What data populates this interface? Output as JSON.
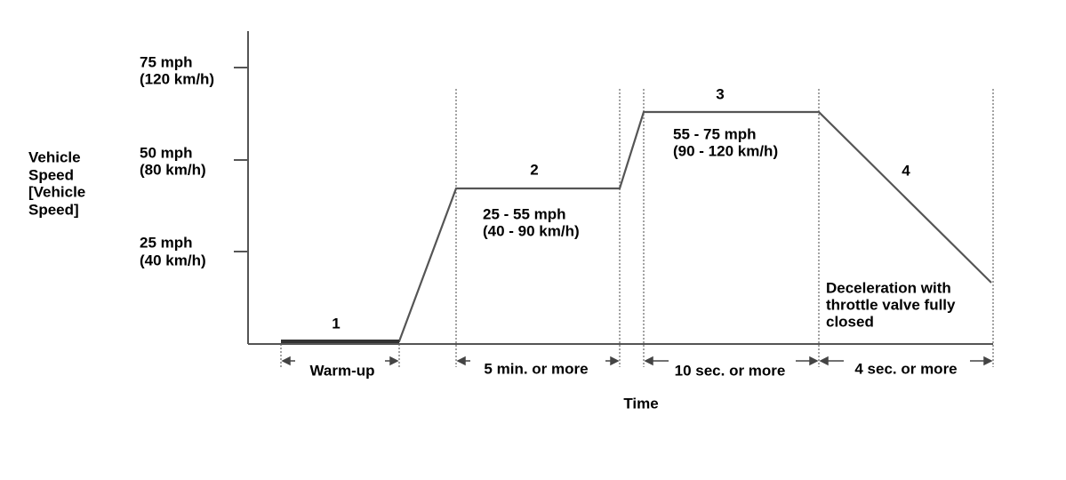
{
  "y_axis": {
    "title_lines": [
      "Vehicle",
      "Speed",
      "[Vehicle",
      "Speed]"
    ],
    "ticks": [
      {
        "mph": "75 mph",
        "kmh": "(120 km/h)"
      },
      {
        "mph": "50 mph",
        "kmh": "(80 km/h)"
      },
      {
        "mph": "25 mph",
        "kmh": "(40 km/h)"
      }
    ]
  },
  "x_axis": {
    "title": "Time"
  },
  "phases": [
    {
      "number": "1",
      "duration": "Warm-up"
    },
    {
      "number": "2",
      "speed_range": [
        "25 - 55 mph",
        "(40 - 90 km/h)"
      ],
      "duration": "5 min. or more"
    },
    {
      "number": "3",
      "speed_range": [
        "55 - 75 mph",
        "(90 - 120 km/h)"
      ],
      "duration": "10 sec. or more"
    },
    {
      "number": "4",
      "note": [
        "Deceleration with",
        "throttle valve fully",
        "closed"
      ],
      "duration": "4 sec. or more"
    }
  ]
}
